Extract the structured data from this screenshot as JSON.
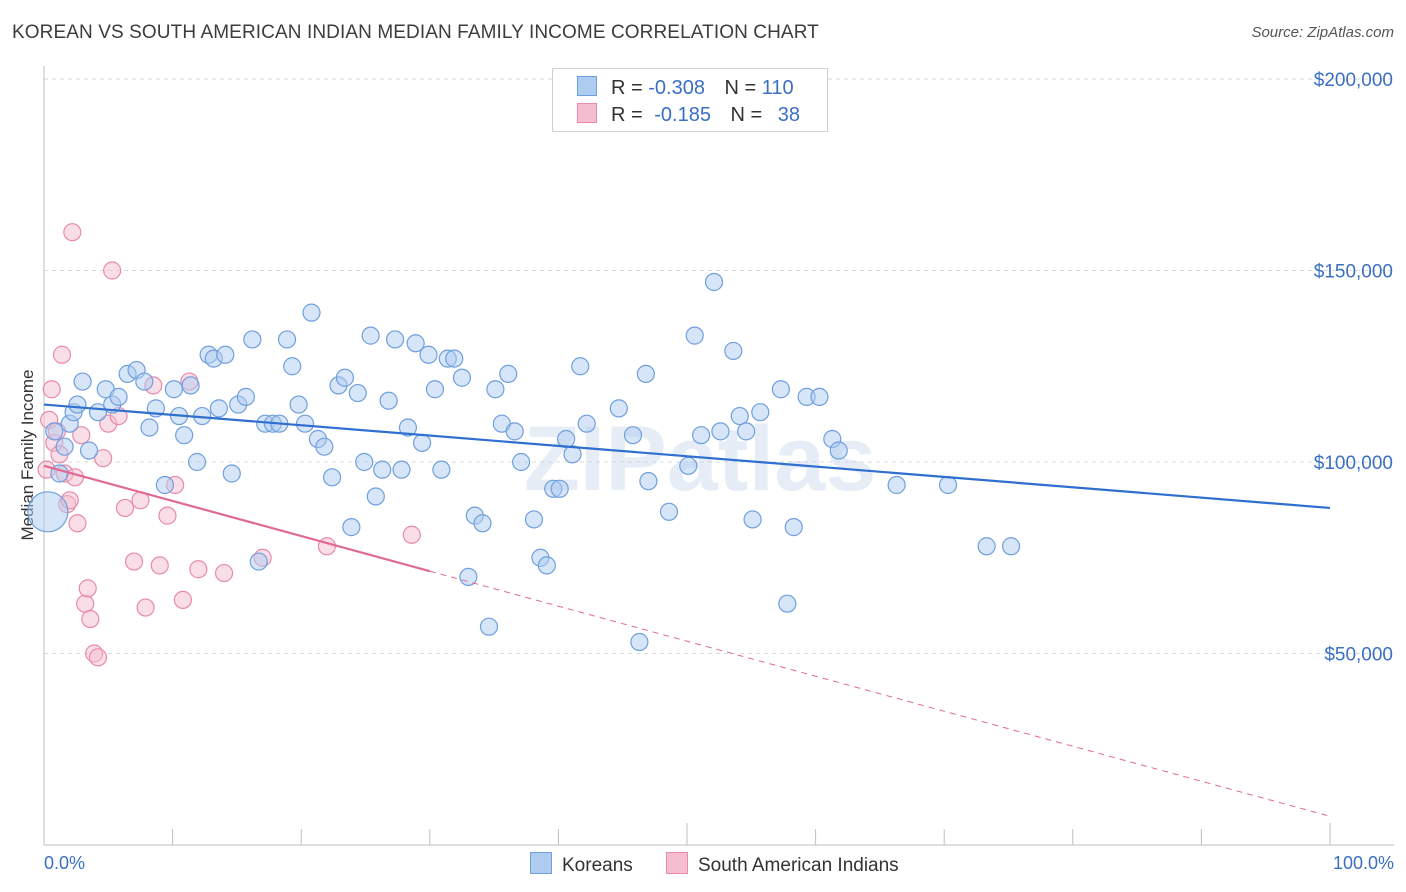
{
  "title": "KOREAN VS SOUTH AMERICAN INDIAN MEDIAN FAMILY INCOME CORRELATION CHART",
  "source": "Source: ZipAtlas.com",
  "legend": {
    "r_label": "R =",
    "n_label": "N =",
    "rows": [
      {
        "r": "-0.308",
        "n": "110"
      },
      {
        "r": "-0.185",
        "n": "38"
      }
    ]
  },
  "bottom_legend": [
    "Koreans",
    "South American Indians"
  ],
  "watermark": "ZIPatlas",
  "colors": {
    "korean_fill": "#aecbf0",
    "korean_stroke": "#6f9fde",
    "korean_line": "#2f6fcf",
    "sai_fill": "#f5bdd0",
    "sai_stroke": "#e98aa9",
    "sai_line": "#e06a94",
    "tick_text": "#3a6fc4",
    "grid": "#d9d9d9"
  },
  "chart_data": {
    "type": "scatter",
    "title": "KOREAN VS SOUTH AMERICAN INDIAN MEDIAN FAMILY INCOME CORRELATION CHART",
    "xlabel": "",
    "ylabel": "Median Family Income",
    "xlim": [
      0,
      100
    ],
    "ylim": [
      0,
      200000
    ],
    "x_tick_labels": [
      "0.0%",
      "100.0%"
    ],
    "y_ticks": [
      50000,
      100000,
      150000,
      200000
    ],
    "y_tick_labels": [
      "$50,000",
      "$100,000",
      "$150,000",
      "$200,000"
    ],
    "grid": true,
    "series": [
      {
        "name": "Koreans",
        "R": -0.308,
        "N": 110,
        "trend": {
          "x0": 0,
          "y0": 115000,
          "x1": 100,
          "y1": 88000
        },
        "points": [
          [
            0.3,
            87000
          ],
          [
            0.8,
            108000
          ],
          [
            1.2,
            97000
          ],
          [
            1.6,
            104000
          ],
          [
            2.0,
            110000
          ],
          [
            2.3,
            113000
          ],
          [
            2.6,
            115000
          ],
          [
            3.0,
            121000
          ],
          [
            3.5,
            103000
          ],
          [
            4.2,
            113000
          ],
          [
            4.8,
            119000
          ],
          [
            5.3,
            115000
          ],
          [
            5.8,
            117000
          ],
          [
            6.5,
            123000
          ],
          [
            7.2,
            124000
          ],
          [
            7.8,
            121000
          ],
          [
            8.2,
            109000
          ],
          [
            8.7,
            114000
          ],
          [
            9.4,
            94000
          ],
          [
            10.1,
            119000
          ],
          [
            10.5,
            112000
          ],
          [
            10.9,
            107000
          ],
          [
            11.4,
            120000
          ],
          [
            11.9,
            100000
          ],
          [
            12.3,
            112000
          ],
          [
            12.8,
            128000
          ],
          [
            13.2,
            127000
          ],
          [
            13.6,
            114000
          ],
          [
            14.1,
            128000
          ],
          [
            14.6,
            97000
          ],
          [
            15.1,
            115000
          ],
          [
            15.7,
            117000
          ],
          [
            16.2,
            132000
          ],
          [
            16.7,
            74000
          ],
          [
            17.2,
            110000
          ],
          [
            17.8,
            110000
          ],
          [
            18.3,
            110000
          ],
          [
            18.9,
            132000
          ],
          [
            19.3,
            125000
          ],
          [
            19.8,
            115000
          ],
          [
            20.3,
            110000
          ],
          [
            20.8,
            139000
          ],
          [
            21.3,
            106000
          ],
          [
            21.8,
            104000
          ],
          [
            22.4,
            96000
          ],
          [
            22.9,
            120000
          ],
          [
            23.4,
            122000
          ],
          [
            23.9,
            83000
          ],
          [
            24.4,
            118000
          ],
          [
            24.9,
            100000
          ],
          [
            25.4,
            133000
          ],
          [
            25.8,
            91000
          ],
          [
            26.3,
            98000
          ],
          [
            26.8,
            116000
          ],
          [
            27.3,
            132000
          ],
          [
            27.8,
            98000
          ],
          [
            28.3,
            109000
          ],
          [
            28.9,
            131000
          ],
          [
            29.4,
            105000
          ],
          [
            29.9,
            128000
          ],
          [
            30.4,
            119000
          ],
          [
            30.9,
            98000
          ],
          [
            31.4,
            127000
          ],
          [
            31.9,
            127000
          ],
          [
            32.5,
            122000
          ],
          [
            33.0,
            70000
          ],
          [
            33.5,
            86000
          ],
          [
            34.1,
            84000
          ],
          [
            34.6,
            57000
          ],
          [
            35.1,
            119000
          ],
          [
            35.6,
            110000
          ],
          [
            36.1,
            123000
          ],
          [
            36.6,
            108000
          ],
          [
            37.1,
            100000
          ],
          [
            38.1,
            85000
          ],
          [
            38.6,
            75000
          ],
          [
            39.1,
            73000
          ],
          [
            39.6,
            93000
          ],
          [
            40.1,
            93000
          ],
          [
            40.6,
            106000
          ],
          [
            41.1,
            102000
          ],
          [
            41.7,
            125000
          ],
          [
            42.2,
            110000
          ],
          [
            44.7,
            114000
          ],
          [
            45.8,
            107000
          ],
          [
            46.3,
            53000
          ],
          [
            46.8,
            123000
          ],
          [
            47.0,
            95000
          ],
          [
            48.6,
            87000
          ],
          [
            50.1,
            99000
          ],
          [
            50.6,
            133000
          ],
          [
            51.1,
            107000
          ],
          [
            52.1,
            147000
          ],
          [
            52.6,
            108000
          ],
          [
            53.6,
            129000
          ],
          [
            54.1,
            112000
          ],
          [
            54.6,
            108000
          ],
          [
            55.1,
            85000
          ],
          [
            55.7,
            113000
          ],
          [
            57.3,
            119000
          ],
          [
            57.8,
            63000
          ],
          [
            58.3,
            83000
          ],
          [
            59.3,
            117000
          ],
          [
            60.3,
            117000
          ],
          [
            61.3,
            106000
          ],
          [
            61.8,
            103000
          ],
          [
            66.3,
            94000
          ],
          [
            70.3,
            94000
          ],
          [
            73.3,
            78000
          ],
          [
            75.2,
            78000
          ]
        ]
      },
      {
        "name": "South American Indians",
        "R": -0.185,
        "N": 38,
        "trend": {
          "x0": 0,
          "y0": 99000,
          "x1": 30,
          "y1": 71500,
          "dashed_to_x": 100,
          "dashed_to_y": 7500
        },
        "points": [
          [
            0.2,
            98000
          ],
          [
            0.4,
            111000
          ],
          [
            0.6,
            119000
          ],
          [
            0.8,
            105000
          ],
          [
            1.0,
            108000
          ],
          [
            1.2,
            102000
          ],
          [
            1.4,
            128000
          ],
          [
            1.6,
            97000
          ],
          [
            1.8,
            89000
          ],
          [
            2.0,
            90000
          ],
          [
            2.2,
            160000
          ],
          [
            2.4,
            96000
          ],
          [
            2.6,
            84000
          ],
          [
            2.9,
            107000
          ],
          [
            3.2,
            63000
          ],
          [
            3.4,
            67000
          ],
          [
            3.6,
            59000
          ],
          [
            3.9,
            50000
          ],
          [
            4.2,
            49000
          ],
          [
            4.6,
            101000
          ],
          [
            5.0,
            110000
          ],
          [
            5.3,
            150000
          ],
          [
            5.8,
            112000
          ],
          [
            6.3,
            88000
          ],
          [
            7.0,
            74000
          ],
          [
            7.5,
            90000
          ],
          [
            7.9,
            62000
          ],
          [
            8.5,
            120000
          ],
          [
            9.0,
            73000
          ],
          [
            9.6,
            86000
          ],
          [
            10.2,
            94000
          ],
          [
            10.8,
            64000
          ],
          [
            11.3,
            121000
          ],
          [
            12.0,
            72000
          ],
          [
            14.0,
            71000
          ],
          [
            17.0,
            75000
          ],
          [
            22.0,
            78000
          ],
          [
            28.6,
            81000
          ]
        ]
      }
    ]
  }
}
